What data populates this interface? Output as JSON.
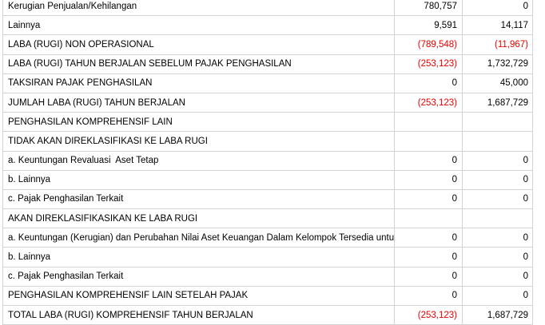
{
  "palette": {
    "background": "#ffffff",
    "border": "#d3d3d3",
    "text": "#000000",
    "negative": "#e80000"
  },
  "table": {
    "rows": [
      {
        "label": "Kerugian Penjualan/Kehilangan",
        "v1": "780,757",
        "v2": "0"
      },
      {
        "label": "Lainnya",
        "v1": "9,591",
        "v2": "14,117"
      },
      {
        "label": "LABA (RUGI) NON OPERASIONAL",
        "v1": "(789,548)",
        "v2": "(11,967)"
      },
      {
        "label": "LABA (RUGI) TAHUN BERJALAN SEBELUM PAJAK PENGHASILAN",
        "v1": "(253,123)",
        "v2": "1,732,729"
      },
      {
        "label": "TAKSIRAN PAJAK PENGHASILAN",
        "v1": "0",
        "v2": "45,000"
      },
      {
        "label": "JUMLAH LABA (RUGI) TAHUN BERJALAN",
        "v1": "(253,123)",
        "v2": "1,687,729"
      },
      {
        "label": "PENGHASILAN KOMPREHENSIF LAIN",
        "v1": "",
        "v2": ""
      },
      {
        "label": "TIDAK AKAN DIREKLASIFIKASI KE LABA RUGI",
        "v1": "",
        "v2": ""
      },
      {
        "label": "a. Keuntungan Revaluasi  Aset Tetap",
        "v1": "0",
        "v2": "0"
      },
      {
        "label": "b. Lainnya",
        "v1": "0",
        "v2": "0"
      },
      {
        "label": "c. Pajak Penghasilan Terkait",
        "v1": "0",
        "v2": "0"
      },
      {
        "label": "AKAN DIREKLASIFIKASIKAN KE LABA RUGI",
        "v1": "",
        "v2": ""
      },
      {
        "label": "a. Keuntungan (Kerugian) dan Perubahan Nilai Aset Keuangan Dalam Kelompok Tersedia untuk Dijual",
        "v1": "0",
        "v2": "0"
      },
      {
        "label": "b. Lainnya",
        "v1": "0",
        "v2": "0"
      },
      {
        "label": "c. Pajak Penghasilan Terkait",
        "v1": "0",
        "v2": "0"
      },
      {
        "label": "PENGHASILAN KOMPREHENSIF LAIN SETELAH PAJAK",
        "v1": "0",
        "v2": "0"
      },
      {
        "label": "TOTAL LABA (RUGI) KOMPREHENSIF TAHUN BERJALAN",
        "v1": "(253,123)",
        "v2": "1,687,729"
      }
    ]
  }
}
